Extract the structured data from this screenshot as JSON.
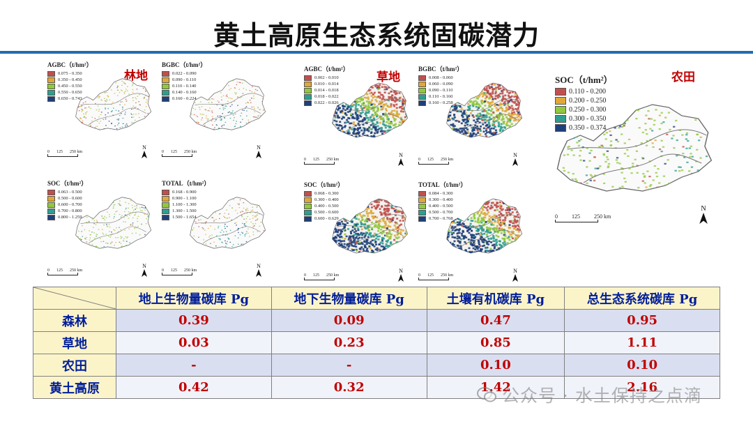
{
  "title": "黄土高原生态系统固碳潜力",
  "colors": {
    "accent_rule": "#1f6db3",
    "value_red": "#c00000",
    "header_blue": "#001e9a"
  },
  "groups": {
    "forest": "林地",
    "grass": "草地",
    "farm": "农田"
  },
  "scale": {
    "ticks": [
      "0",
      "125",
      "250 km"
    ],
    "north": "N"
  },
  "forest": {
    "agbc": {
      "title": "AGBC（t/hm²）",
      "items": [
        "0.075 - 0.350",
        "0.350 - 0.450",
        "0.450 - 0.550",
        "0.550 - 0.650",
        "0.650 - 0.743"
      ]
    },
    "bgbc": {
      "title": "BGBC（t/hm²）",
      "items": [
        "0.022 - 0.090",
        "0.090 - 0.110",
        "0.110 - 0.140",
        "0.140 - 0.160",
        "0.160 - 0.224"
      ]
    },
    "soc": {
      "title": "SOC（t/hm²）",
      "items": [
        "0.063 - 0.500",
        "0.500 - 0.600",
        "0.600 - 0.700",
        "0.700 - 0.800",
        "0.800 - 1.259"
      ]
    },
    "total": {
      "title": "TOTAL（t/hm²）",
      "items": [
        "0.168 - 0.900",
        "0.900 - 1.100",
        "1.100 - 1.300",
        "1.300 - 1.500",
        "1.500 - 1.654"
      ]
    }
  },
  "grass": {
    "agbc": {
      "title": "AGBC（t/hm²）",
      "items": [
        "0.002 - 0.010",
        "0.010 - 0.014",
        "0.014 - 0.018",
        "0.018 - 0.022",
        "0.022 - 0.026"
      ]
    },
    "bgbc": {
      "title": "BGBC（t/hm²）",
      "items": [
        "0.008 - 0.060",
        "0.060 - 0.090",
        "0.090 - 0.110",
        "0.110 - 0.160",
        "0.160 - 0.258"
      ]
    },
    "soc": {
      "title": "SOC（t/hm²）",
      "items": [
        "0.068 - 0.300",
        "0.300 - 0.400",
        "0.400 - 0.500",
        "0.500 - 0.600",
        "0.600 - 0.629"
      ]
    },
    "total": {
      "title": "TOTAL（t/hm²）",
      "items": [
        "0.084 - 0.300",
        "0.300 - 0.400",
        "0.400 - 0.500",
        "0.500 - 0.700",
        "0.700 - 0.768"
      ]
    }
  },
  "farm": {
    "soc": {
      "title": "SOC（t/hm²）",
      "items": [
        "0.110 - 0.200",
        "0.200 - 0.250",
        "0.250 - 0.300",
        "0.300 - 0.350",
        "0.350 - 0.374"
      ]
    }
  },
  "legend_colors": [
    "#c0504d",
    "#e0a83a",
    "#92c83e",
    "#2f9e8f",
    "#1f3f7a"
  ],
  "table": {
    "headers": [
      "",
      "地上生物量碳库 Pg",
      "地下生物量碳库 Pg",
      "土壤有机碳库 Pg",
      "总生态系统碳库 Pg"
    ],
    "rows": [
      {
        "name": "森林",
        "values": [
          "0.39",
          "0.09",
          "0.47",
          "0.95"
        ]
      },
      {
        "name": "草地",
        "values": [
          "0.03",
          "0.23",
          "0.85",
          "1.11"
        ]
      },
      {
        "name": "农田",
        "values": [
          "-",
          "-",
          "0.10",
          "0.10"
        ]
      },
      {
        "name": "黄土高原",
        "values": [
          "0.42",
          "0.32",
          "1.42",
          "2.16"
        ]
      }
    ]
  },
  "watermark": "公众号 · 水土保持之点滴"
}
